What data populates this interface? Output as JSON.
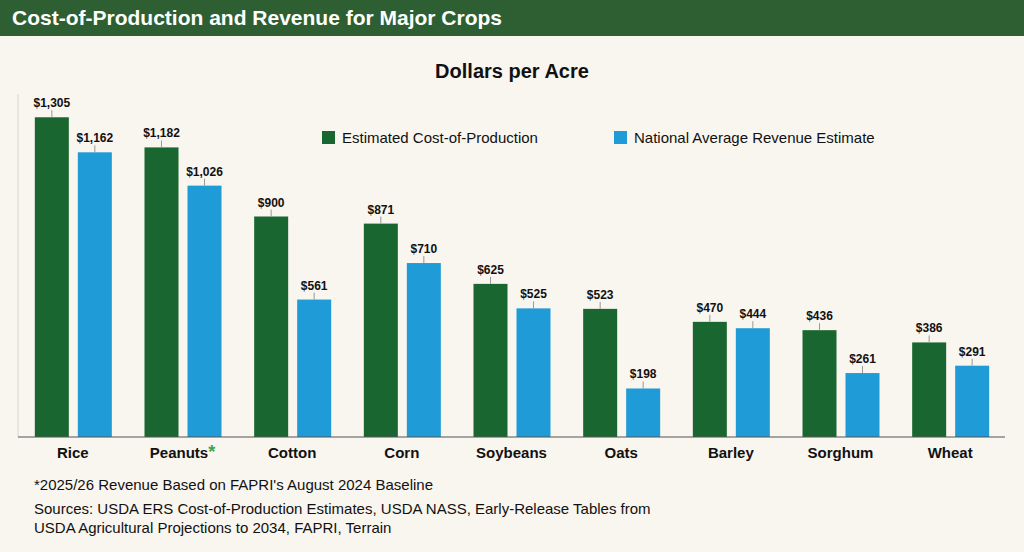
{
  "chart_data": {
    "type": "bar",
    "title": "Cost-of-Production and Revenue for Major Crops",
    "subtitle": "Dollars per Acre",
    "categories": [
      "Rice",
      "Peanuts*",
      "Cotton",
      "Corn",
      "Soybeans",
      "Oats",
      "Barley",
      "Sorghum",
      "Wheat"
    ],
    "series": [
      {
        "name": "Estimated Cost-of-Production",
        "color": "#1a6630",
        "values": [
          1305,
          1182,
          900,
          871,
          625,
          523,
          470,
          436,
          386
        ],
        "value_labels": [
          "$1,305",
          "$1,182",
          "$900",
          "$871",
          "$625",
          "$523",
          "$470",
          "$436",
          "$386"
        ]
      },
      {
        "name": "National Average Revenue Estimate",
        "color": "#1f9bd7",
        "values": [
          1162,
          1026,
          561,
          710,
          525,
          198,
          444,
          261,
          291
        ],
        "value_labels": [
          "$1,162",
          "$1,026",
          "$561",
          "$710",
          "$525",
          "$198",
          "$444",
          "$261",
          "$291"
        ]
      }
    ],
    "ylim": [
      0,
      1400
    ],
    "tick_labels": "x",
    "grid": false,
    "data_labels": true,
    "legend": "top",
    "footnote": "*2025/26 Revenue Based on FAPRI's August 2024 Baseline",
    "sources": [
      "Sources: USDA ERS Cost-of-Production Estimates, USDA NASS, Early-Release Tables from",
      "USDA Agricultural Projections to 2034, FAPRI, Terrain"
    ]
  }
}
